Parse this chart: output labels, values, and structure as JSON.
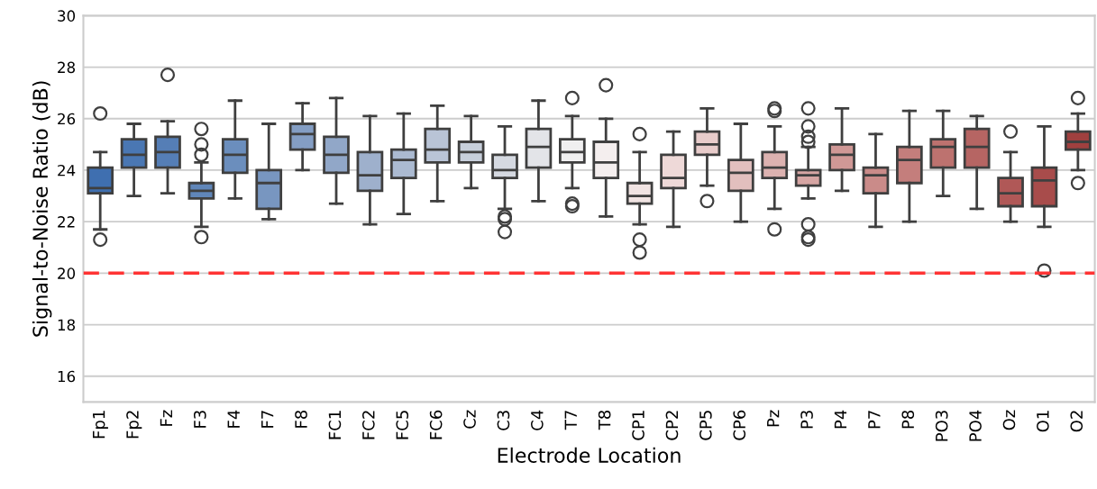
{
  "chart_data": {
    "type": "box",
    "xlabel": "Electrode Location",
    "ylabel": "Signal-to-Noise Ratio (dB)",
    "categories": [
      "Fp1",
      "Fp2",
      "Fz",
      "F3",
      "F4",
      "F7",
      "F8",
      "FC1",
      "FC2",
      "FC5",
      "FC6",
      "Cz",
      "C3",
      "C4",
      "T7",
      "T8",
      "CP1",
      "CP2",
      "CP5",
      "CP6",
      "Pz",
      "P3",
      "P4",
      "P7",
      "P8",
      "PO3",
      "PO4",
      "Oz",
      "O1",
      "O2"
    ],
    "colors": [
      "#3f6fb0",
      "#4a77b3",
      "#557eb6",
      "#6086b9",
      "#6b8ebd",
      "#7896c0",
      "#849ec4",
      "#91a7c8",
      "#9eb0cc",
      "#abbad1",
      "#b9c4d6",
      "#c7cfdb",
      "#d5d9e1",
      "#e3e4e8",
      "#f0eff0",
      "#f4eeee",
      "#f1e4e3",
      "#eed9d8",
      "#e8cccb",
      "#e2bfbe",
      "#dcb2b0",
      "#d6a5a3",
      "#d09896",
      "#ca8b89",
      "#c47e7c",
      "#bd726f",
      "#b66563",
      "#b05857",
      "#a84c4b",
      "#a0403f"
    ],
    "boxes": [
      {
        "low": 21.7,
        "q1": 23.1,
        "median": 23.3,
        "q3": 24.1,
        "high": 24.7,
        "outliers": [
          26.2,
          21.3
        ]
      },
      {
        "low": 23.0,
        "q1": 24.1,
        "median": 24.6,
        "q3": 25.2,
        "high": 25.8
      },
      {
        "low": 23.1,
        "q1": 24.1,
        "median": 24.7,
        "q3": 25.3,
        "high": 25.9,
        "outliers": [
          27.7
        ]
      },
      {
        "low": 21.8,
        "q1": 22.9,
        "median": 23.2,
        "q3": 23.5,
        "high": 24.3,
        "outliers": [
          25.6,
          25.0,
          24.6,
          21.4
        ]
      },
      {
        "low": 22.9,
        "q1": 23.9,
        "median": 24.6,
        "q3": 25.2,
        "high": 26.7
      },
      {
        "low": 22.1,
        "q1": 22.5,
        "median": 23.5,
        "q3": 24.0,
        "high": 25.8
      },
      {
        "low": 24.0,
        "q1": 24.8,
        "median": 25.4,
        "q3": 25.8,
        "high": 26.6
      },
      {
        "low": 22.7,
        "q1": 23.9,
        "median": 24.6,
        "q3": 25.3,
        "high": 26.8
      },
      {
        "low": 21.9,
        "q1": 23.2,
        "median": 23.8,
        "q3": 24.7,
        "high": 26.1
      },
      {
        "low": 22.3,
        "q1": 23.7,
        "median": 24.4,
        "q3": 24.8,
        "high": 26.2
      },
      {
        "low": 22.8,
        "q1": 24.3,
        "median": 24.8,
        "q3": 25.6,
        "high": 26.5
      },
      {
        "low": 23.3,
        "q1": 24.3,
        "median": 24.7,
        "q3": 25.1,
        "high": 26.1
      },
      {
        "low": 22.5,
        "q1": 23.7,
        "median": 24.0,
        "q3": 24.6,
        "high": 25.7,
        "outliers": [
          22.2,
          22.1,
          21.6
        ]
      },
      {
        "low": 22.8,
        "q1": 24.1,
        "median": 24.9,
        "q3": 25.6,
        "high": 26.7
      },
      {
        "low": 23.3,
        "q1": 24.3,
        "median": 24.7,
        "q3": 25.2,
        "high": 26.1,
        "outliers": [
          26.8,
          22.7,
          22.6
        ]
      },
      {
        "low": 22.2,
        "q1": 23.7,
        "median": 24.3,
        "q3": 25.1,
        "high": 26.0,
        "outliers": [
          27.3
        ]
      },
      {
        "low": 21.9,
        "q1": 22.7,
        "median": 23.0,
        "q3": 23.5,
        "high": 24.7,
        "outliers": [
          25.4,
          21.3,
          20.8
        ]
      },
      {
        "low": 21.8,
        "q1": 23.3,
        "median": 23.7,
        "q3": 24.6,
        "high": 25.5
      },
      {
        "low": 23.4,
        "q1": 24.6,
        "median": 25.0,
        "q3": 25.5,
        "high": 26.4,
        "outliers": [
          22.8
        ]
      },
      {
        "low": 22.0,
        "q1": 23.2,
        "median": 23.9,
        "q3": 24.4,
        "high": 25.8
      },
      {
        "low": 22.5,
        "q1": 23.7,
        "median": 24.1,
        "q3": 24.7,
        "high": 25.7,
        "outliers": [
          26.4,
          26.3,
          21.7
        ]
      },
      {
        "low": 22.9,
        "q1": 23.4,
        "median": 23.8,
        "q3": 24.0,
        "high": 24.9,
        "outliers": [
          26.4,
          25.7,
          25.3,
          25.1,
          21.9,
          21.4,
          21.3
        ]
      },
      {
        "low": 23.2,
        "q1": 24.0,
        "median": 24.6,
        "q3": 25.0,
        "high": 26.4
      },
      {
        "low": 21.8,
        "q1": 23.1,
        "median": 23.8,
        "q3": 24.1,
        "high": 25.4
      },
      {
        "low": 22.0,
        "q1": 23.5,
        "median": 24.4,
        "q3": 24.9,
        "high": 26.3
      },
      {
        "low": 23.0,
        "q1": 24.1,
        "median": 24.9,
        "q3": 25.2,
        "high": 26.3
      },
      {
        "low": 22.5,
        "q1": 24.1,
        "median": 24.9,
        "q3": 25.6,
        "high": 26.1
      },
      {
        "low": 22.0,
        "q1": 22.6,
        "median": 23.1,
        "q3": 23.7,
        "high": 24.7,
        "outliers": [
          25.5
        ]
      },
      {
        "low": 21.8,
        "q1": 22.6,
        "median": 23.6,
        "q3": 24.1,
        "high": 25.7,
        "outliers": [
          20.1
        ]
      },
      {
        "low": 24.0,
        "q1": 24.8,
        "median": 25.1,
        "q3": 25.5,
        "high": 26.2,
        "outliers": [
          26.8,
          23.5
        ]
      }
    ],
    "ylim": [
      15,
      30
    ],
    "yticks": [
      16,
      18,
      20,
      22,
      24,
      26,
      28,
      30
    ],
    "grid": "y",
    "ref_lines": [
      {
        "axis": "y",
        "value": 20,
        "color": "#ff3333",
        "line_style": "dashed"
      }
    ]
  }
}
